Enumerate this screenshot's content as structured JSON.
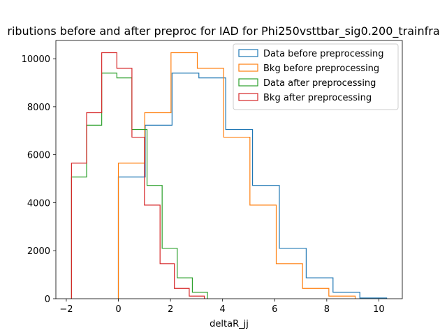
{
  "chart_data": {
    "type": "histogram-step",
    "title": "ributions before and after preproc for IAD for Phi250vsttbar_sig0.200_trainfra",
    "xlabel": "deltaR_jj",
    "ylabel": "",
    "xlim": [
      -2.4,
      10.9
    ],
    "ylim": [
      0,
      10760
    ],
    "xticks": [
      -2,
      0,
      2,
      4,
      6,
      8,
      10
    ],
    "yticks": [
      0,
      2000,
      4000,
      6000,
      8000,
      10000
    ],
    "legend_position": "top-right",
    "grid": false,
    "series": [
      {
        "name": "Data before preprocessing",
        "color": "#1f77b4",
        "edges": [
          0.0,
          1.03,
          2.06,
          3.09,
          4.12,
          5.15,
          6.18,
          7.21,
          8.24,
          9.27,
          10.3
        ],
        "counts": [
          5070,
          7230,
          9400,
          9200,
          7050,
          4720,
          2100,
          870,
          270,
          30
        ]
      },
      {
        "name": "Bkg before preprocessing",
        "color": "#ff7f0e",
        "edges": [
          0.0,
          1.01,
          2.02,
          3.03,
          4.04,
          5.05,
          6.06,
          7.07,
          8.08,
          9.09
        ],
        "counts": [
          5650,
          7750,
          10250,
          9600,
          6730,
          3900,
          1460,
          430,
          110
        ]
      },
      {
        "name": "Data after preprocessing",
        "color": "#2ca02c",
        "edges": [
          -1.8,
          -1.22,
          -0.64,
          -0.06,
          0.52,
          1.1,
          1.68,
          2.26,
          2.84,
          3.42
        ],
        "counts": [
          5070,
          7230,
          9400,
          9200,
          7050,
          4720,
          2100,
          870,
          270
        ]
      },
      {
        "name": "Bkg after preprocessing",
        "color": "#d62728",
        "edges": [
          -1.8,
          -1.22,
          -0.64,
          -0.06,
          0.52,
          1.0,
          1.6,
          2.15,
          2.72,
          3.3
        ],
        "counts": [
          5650,
          7750,
          10250,
          9600,
          6730,
          3900,
          1460,
          430,
          110
        ]
      }
    ]
  }
}
